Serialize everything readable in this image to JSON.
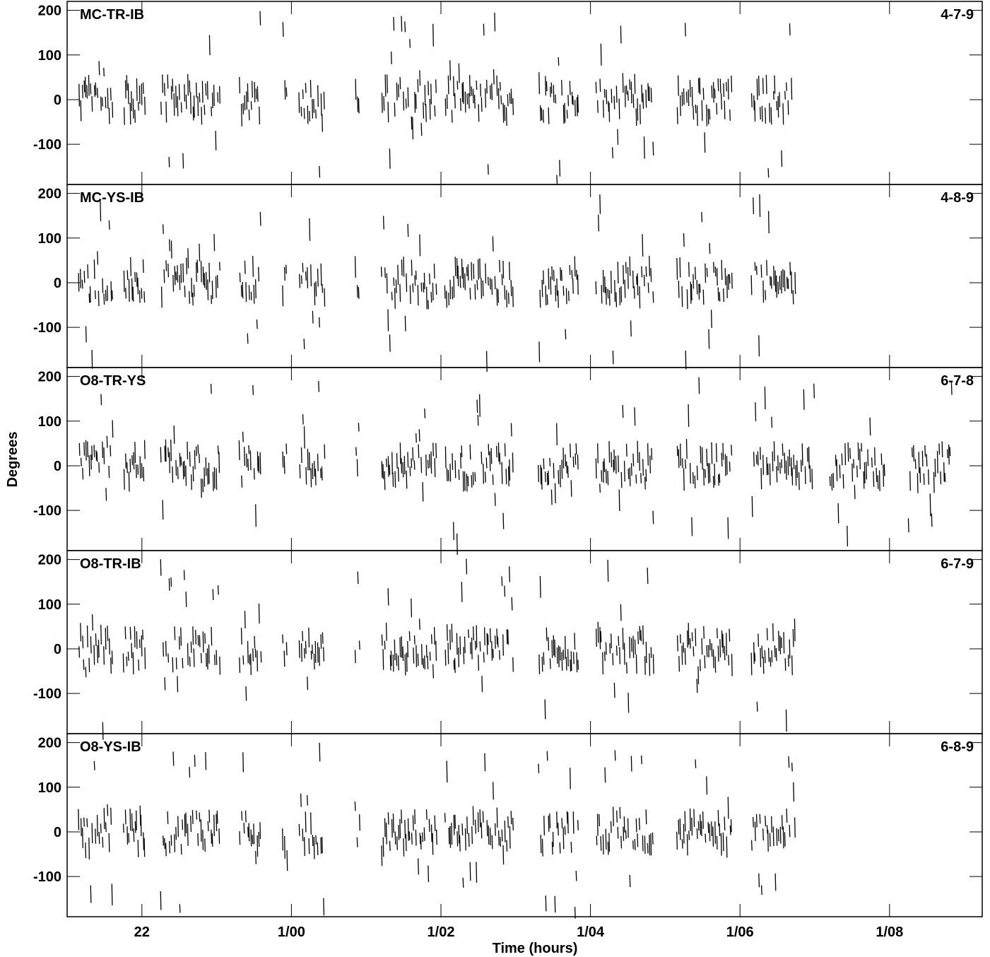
{
  "chart_data": {
    "type": "scatter",
    "xlabel": "Time (hours)",
    "ylabel": "Degrees",
    "x_unit": "hours",
    "xlim": [
      21.0,
      33.24
    ],
    "ylim": [
      -190,
      220
    ],
    "x_tick_labels": [
      {
        "value": 22,
        "label": "22"
      },
      {
        "value": 24,
        "label": "1/00"
      },
      {
        "value": 26,
        "label": "1/02"
      },
      {
        "value": 28,
        "label": "1/04"
      },
      {
        "value": 30,
        "label": "1/06"
      },
      {
        "value": 32,
        "label": "1/08"
      }
    ],
    "y_ticks": [
      200,
      100,
      0,
      -100
    ],
    "y_tick_labels": [
      "200",
      "100",
      "0",
      "-100"
    ],
    "marker": "short vertical dash",
    "grid": false,
    "color": "#000000",
    "panels": [
      {
        "name": "MC-TR-IB",
        "triplet": "4-7-9",
        "scans": [
          [
            21.15,
            21.62
          ],
          [
            21.75,
            22.05
          ],
          [
            22.25,
            23.05
          ],
          [
            23.3,
            23.6
          ],
          [
            23.88,
            23.95
          ],
          [
            24.1,
            24.45
          ],
          [
            24.85,
            24.92
          ],
          [
            25.2,
            25.95
          ],
          [
            26.05,
            26.98
          ],
          [
            27.3,
            27.85
          ],
          [
            28.07,
            28.85
          ],
          [
            29.15,
            29.9
          ],
          [
            30.15,
            30.7
          ]
        ],
        "outlier_rate": 0.22
      },
      {
        "name": "MC-YS-IB",
        "triplet": "4-8-9",
        "scans": [
          [
            21.15,
            21.62
          ],
          [
            21.75,
            22.05
          ],
          [
            22.25,
            23.05
          ],
          [
            23.3,
            23.6
          ],
          [
            23.88,
            23.95
          ],
          [
            24.1,
            24.45
          ],
          [
            24.85,
            24.92
          ],
          [
            25.2,
            25.95
          ],
          [
            26.05,
            26.98
          ],
          [
            27.3,
            27.85
          ],
          [
            28.07,
            28.85
          ],
          [
            29.15,
            29.9
          ],
          [
            30.15,
            30.75
          ]
        ],
        "outlier_rate": 0.18
      },
      {
        "name": "O8-TR-YS",
        "triplet": "6-7-8",
        "scans": [
          [
            21.15,
            21.62
          ],
          [
            21.75,
            22.05
          ],
          [
            22.25,
            23.05
          ],
          [
            23.3,
            23.6
          ],
          [
            23.88,
            23.95
          ],
          [
            24.1,
            24.45
          ],
          [
            24.85,
            24.92
          ],
          [
            25.2,
            25.95
          ],
          [
            26.05,
            26.98
          ],
          [
            27.3,
            27.85
          ],
          [
            28.07,
            28.85
          ],
          [
            29.15,
            29.9
          ],
          [
            30.15,
            31.0
          ],
          [
            31.2,
            31.95
          ],
          [
            32.25,
            32.85
          ]
        ],
        "outlier_rate": 0.2
      },
      {
        "name": "O8-TR-IB",
        "triplet": "6-7-9",
        "scans": [
          [
            21.15,
            21.62
          ],
          [
            21.75,
            22.05
          ],
          [
            22.25,
            23.05
          ],
          [
            23.3,
            23.6
          ],
          [
            23.88,
            23.95
          ],
          [
            24.1,
            24.45
          ],
          [
            24.85,
            24.92
          ],
          [
            25.2,
            25.95
          ],
          [
            26.05,
            26.98
          ],
          [
            27.3,
            27.85
          ],
          [
            28.07,
            28.85
          ],
          [
            29.15,
            29.9
          ],
          [
            30.15,
            30.75
          ]
        ],
        "outlier_rate": 0.2
      },
      {
        "name": "O8-YS-IB",
        "triplet": "6-8-9",
        "scans": [
          [
            21.15,
            21.62
          ],
          [
            21.75,
            22.05
          ],
          [
            22.25,
            23.05
          ],
          [
            23.3,
            23.6
          ],
          [
            23.88,
            23.95
          ],
          [
            24.1,
            24.45
          ],
          [
            24.85,
            24.92
          ],
          [
            25.2,
            25.95
          ],
          [
            26.05,
            26.98
          ],
          [
            27.3,
            27.85
          ],
          [
            28.07,
            28.85
          ],
          [
            29.15,
            29.9
          ],
          [
            30.15,
            30.75
          ]
        ],
        "outlier_rate": 0.2
      }
    ]
  }
}
